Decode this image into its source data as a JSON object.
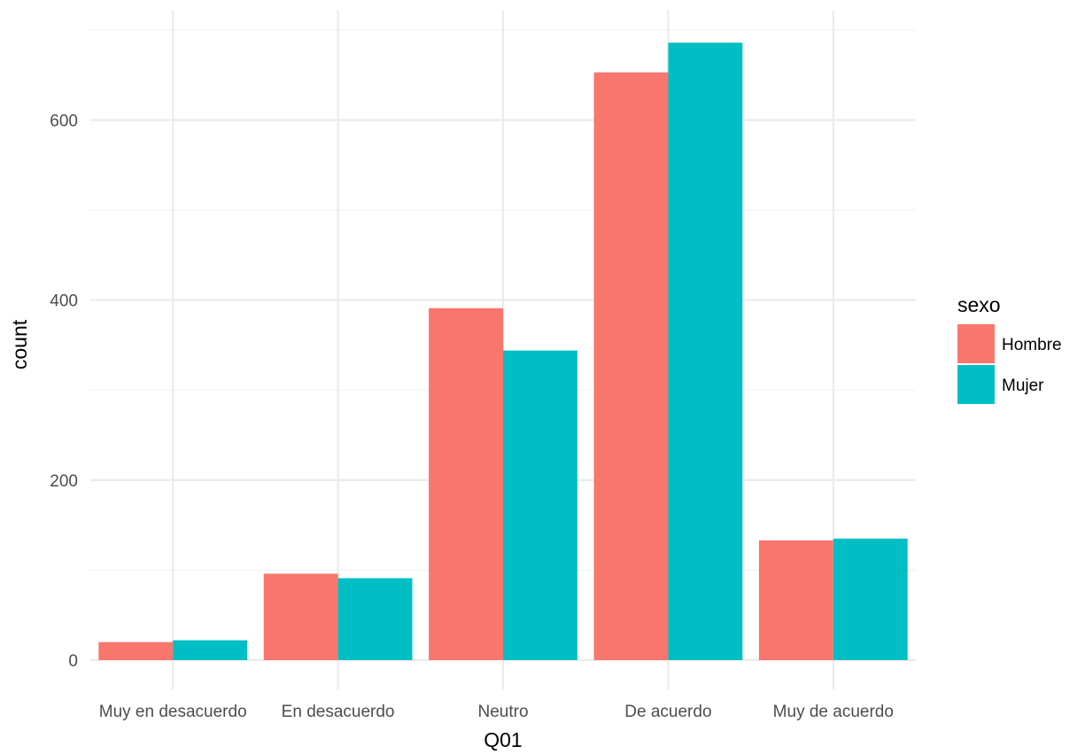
{
  "chart_data": {
    "type": "bar",
    "xlabel": "Q01",
    "ylabel": "count",
    "categories": [
      "Muy en desacuerdo",
      "En desacuerdo",
      "Neutro",
      "De acuerdo",
      "Muy de acuerdo"
    ],
    "series": [
      {
        "name": "Hombre",
        "color": "#F8766D",
        "values": [
          20,
          96,
          391,
          653,
          133
        ]
      },
      {
        "name": "Mujer",
        "color": "#00BFC4",
        "values": [
          22,
          91,
          344,
          686,
          135
        ]
      }
    ],
    "yticks": [
      0,
      200,
      400,
      600
    ],
    "ylim": [
      -10,
      705
    ],
    "legend": {
      "title": "sexo",
      "position": "right"
    },
    "grid": true
  }
}
